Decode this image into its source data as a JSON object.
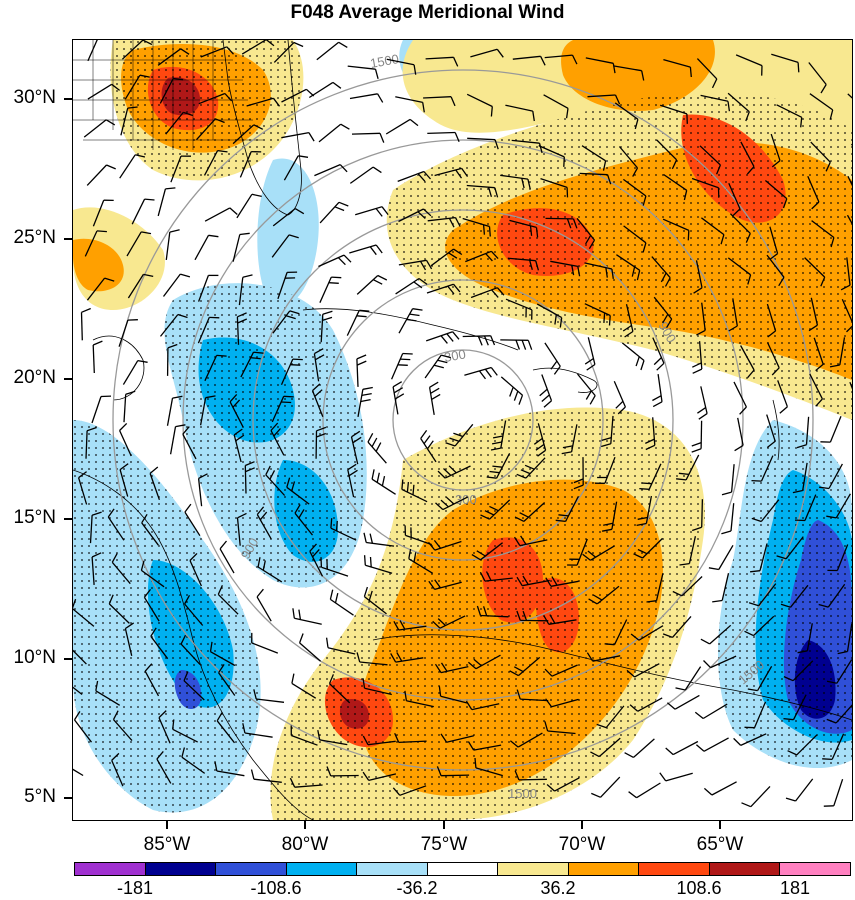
{
  "title": "F048 Average Meridional Wind",
  "lat_labels": [
    "30°N",
    "25°N",
    "20°N",
    "15°N",
    "10°N",
    "5°N"
  ],
  "lon_labels": [
    "85°W",
    "80°W",
    "75°W",
    "70°W",
    "65°W"
  ],
  "range_ring_labels": [
    "300",
    "900",
    "1500"
  ],
  "colorbar": {
    "colors": [
      "#a030d0",
      "#000090",
      "#3050d8",
      "#00b0f0",
      "#a8e0f8",
      "#ffffff",
      "#f8e890",
      "#ffa000",
      "#ff4810",
      "#b01818",
      "#ff80c0"
    ],
    "labels": [
      "-181",
      "-108.6",
      "-36.2",
      "36.2",
      "108.6",
      "181"
    ]
  }
}
